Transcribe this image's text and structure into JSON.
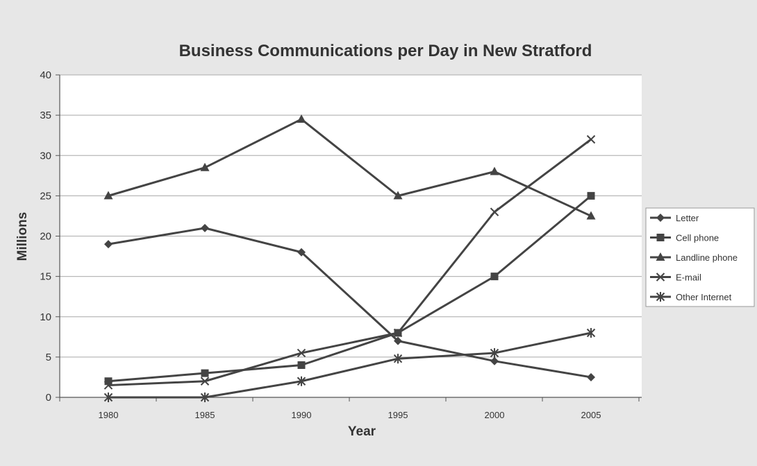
{
  "chart_data": {
    "type": "line",
    "title": "Business Communications per Day in New Stratford",
    "xlabel": "Year",
    "ylabel": "Millions",
    "categories": [
      "1980",
      "1985",
      "1990",
      "1995",
      "2000",
      "2005"
    ],
    "ylim": [
      0,
      40
    ],
    "yticks": [
      0,
      5,
      10,
      15,
      20,
      25,
      30,
      35,
      40
    ],
    "grid": true,
    "legend_position": "right",
    "series": [
      {
        "name": "Letter",
        "marker": "diamond",
        "values": [
          19,
          21,
          18,
          7,
          4.5,
          2.5
        ]
      },
      {
        "name": "Cell phone",
        "marker": "square",
        "values": [
          2,
          3,
          4,
          8,
          15,
          25
        ]
      },
      {
        "name": "Landline phone",
        "marker": "triangle",
        "values": [
          25,
          28.5,
          34.5,
          25,
          28,
          22.5
        ]
      },
      {
        "name": "E-mail",
        "marker": "x",
        "values": [
          1.5,
          2,
          5.5,
          8,
          23,
          32
        ]
      },
      {
        "name": "Other Internet",
        "marker": "asterisk",
        "values": [
          0,
          0,
          2,
          4.8,
          5.5,
          8
        ]
      }
    ],
    "colors": {
      "line": "#444444",
      "grid": "#b8b8b8",
      "plot_bg": "#ffffff",
      "page_bg": "#e7e7e7"
    }
  }
}
